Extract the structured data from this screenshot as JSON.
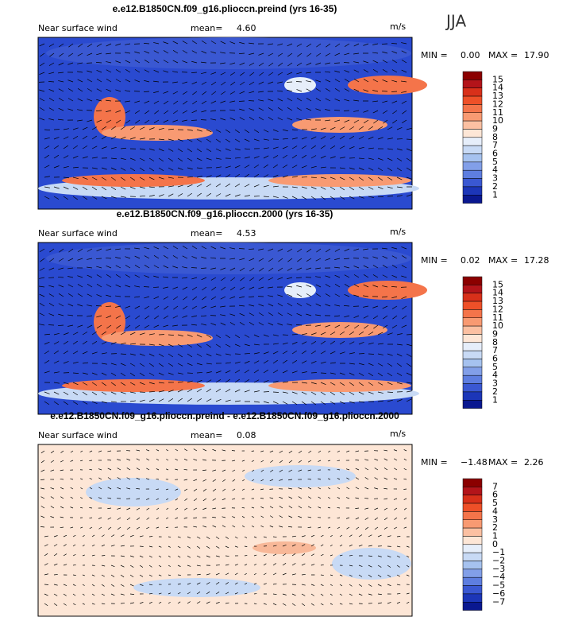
{
  "season": "JJA",
  "panels": [
    {
      "title": "e.e12.B1850CN.f09_g16.plioccn.preind (yrs 16-35)",
      "variable": "Near surface wind",
      "mean_label": "mean=",
      "mean": "4.60",
      "units": "m/s",
      "min_label": "MIN =",
      "min": "0.00",
      "max_label": "MAX =",
      "max": "17.90",
      "levels": [
        "15",
        "14",
        "13",
        "12",
        "11",
        "10",
        "9",
        "8",
        "7",
        "6",
        "5",
        "4",
        "3",
        "2",
        "1"
      ],
      "colors": [
        "#8b0000",
        "#b3141a",
        "#d8301a",
        "#ee5028",
        "#f4744a",
        "#f89a72",
        "#fbc0a2",
        "#fde6d6",
        "#e6eefa",
        "#c8daf5",
        "#a6c2ef",
        "#829fe8",
        "#5e7ee0",
        "#3a58d2",
        "#1c36b8",
        "#0a1890"
      ]
    },
    {
      "title": "e.e12.B1850CN.f09_g16.plioccn.2000 (yrs 16-35)",
      "variable": "Near surface wind",
      "mean_label": "mean=",
      "mean": "4.53",
      "units": "m/s",
      "min_label": "MIN =",
      "min": "0.02",
      "max_label": "MAX =",
      "max": "17.28",
      "levels": [
        "15",
        "14",
        "13",
        "12",
        "11",
        "10",
        "9",
        "8",
        "7",
        "6",
        "5",
        "4",
        "3",
        "2",
        "1"
      ],
      "colors": [
        "#8b0000",
        "#b3141a",
        "#d8301a",
        "#ee5028",
        "#f4744a",
        "#f89a72",
        "#fbc0a2",
        "#fde6d6",
        "#e6eefa",
        "#c8daf5",
        "#a6c2ef",
        "#829fe8",
        "#5e7ee0",
        "#3a58d2",
        "#1c36b8",
        "#0a1890"
      ]
    },
    {
      "title": "e.e12.B1850CN.f09_g16.plioccn.preind - e.e12.B1850CN.f09_g16.plioccn.2000",
      "variable": "Near surface wind",
      "mean_label": "mean=",
      "mean": "0.08",
      "units": "m/s",
      "min_label": "MIN =",
      "min": "−1.48",
      "max_label": "MAX =",
      "max": "2.26",
      "levels": [
        "7",
        "6",
        "5",
        "4",
        "3",
        "2",
        "1",
        "0",
        "−1",
        "−2",
        "−3",
        "−4",
        "−5",
        "−6",
        "−7"
      ],
      "colors": [
        "#8b0000",
        "#b3141a",
        "#d8301a",
        "#ee5028",
        "#f4744a",
        "#f89a72",
        "#fbc0a2",
        "#fde6d6",
        "#e6eefa",
        "#c8daf5",
        "#a6c2ef",
        "#829fe8",
        "#5e7ee0",
        "#3a58d2",
        "#1c36b8",
        "#0a1890"
      ]
    }
  ]
}
